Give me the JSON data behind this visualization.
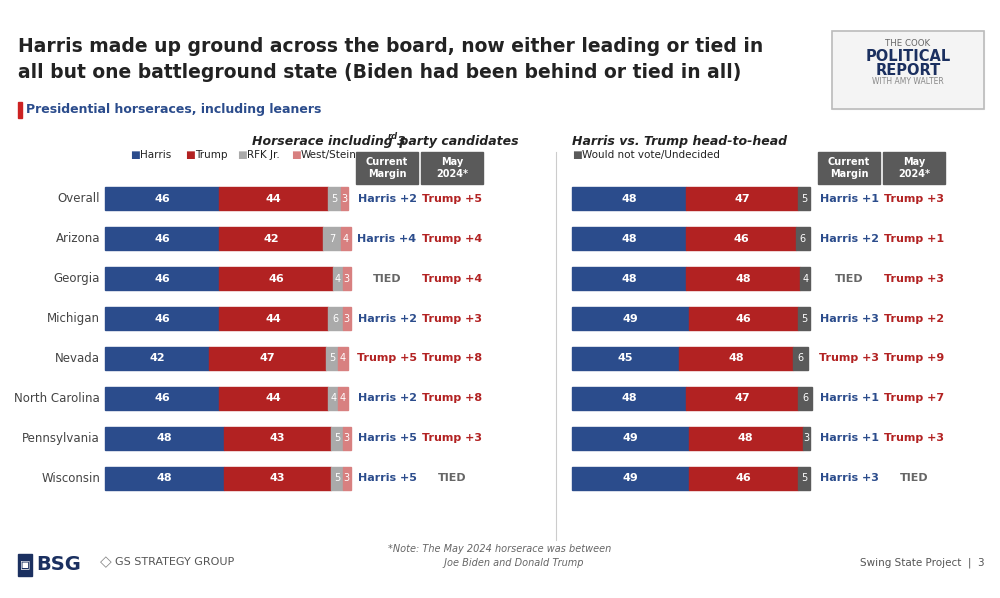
{
  "title": "Harris made up ground across the board, now either leading or tied in\nall but one battleground state (Biden had been behind or tied in all)",
  "subtitle": "Presidential horseraces, including leaners",
  "section1_title": "Horserace including 3ʳᵈ party candidates",
  "section2_title": "Harris vs. Trump head-to-head",
  "states": [
    "Overall",
    "Arizona",
    "Georgia",
    "Michigan",
    "Nevada",
    "North Carolina",
    "Pennsylvania",
    "Wisconsin"
  ],
  "left_bars": [
    {
      "harris": 46,
      "trump": 44,
      "rfk": 5,
      "west": 3
    },
    {
      "harris": 46,
      "trump": 42,
      "rfk": 7,
      "west": 4
    },
    {
      "harris": 46,
      "trump": 46,
      "rfk": 4,
      "west": 3
    },
    {
      "harris": 46,
      "trump": 44,
      "rfk": 6,
      "west": 3
    },
    {
      "harris": 42,
      "trump": 47,
      "rfk": 5,
      "west": 4
    },
    {
      "harris": 46,
      "trump": 44,
      "rfk": 4,
      "west": 4
    },
    {
      "harris": 48,
      "trump": 43,
      "rfk": 5,
      "west": 3
    },
    {
      "harris": 48,
      "trump": 43,
      "rfk": 5,
      "west": 3
    }
  ],
  "right_bars": [
    {
      "harris": 48,
      "trump": 47,
      "undecided": 5
    },
    {
      "harris": 48,
      "trump": 46,
      "undecided": 6
    },
    {
      "harris": 48,
      "trump": 48,
      "undecided": 4
    },
    {
      "harris": 49,
      "trump": 46,
      "undecided": 5
    },
    {
      "harris": 45,
      "trump": 48,
      "undecided": 6
    },
    {
      "harris": 48,
      "trump": 47,
      "undecided": 6
    },
    {
      "harris": 49,
      "trump": 48,
      "undecided": 3
    },
    {
      "harris": 49,
      "trump": 46,
      "undecided": 5
    }
  ],
  "left_margins_current": [
    "Harris +2",
    "Harris +4",
    "TIED",
    "Harris +2",
    "Trump +5",
    "Harris +2",
    "Harris +5",
    "Harris +5"
  ],
  "left_margins_may": [
    "Trump +5",
    "Trump +4",
    "Trump +4",
    "Trump +3",
    "Trump +8",
    "Trump +8",
    "Trump +3",
    "TIED"
  ],
  "right_margins_current": [
    "Harris +1",
    "Harris +2",
    "TIED",
    "Harris +3",
    "Trump +3",
    "Harris +1",
    "Harris +1",
    "Harris +3"
  ],
  "right_margins_may": [
    "Trump +3",
    "Trump +1",
    "Trump +3",
    "Trump +2",
    "Trump +9",
    "Trump +7",
    "Trump +3",
    "TIED"
  ],
  "colors": {
    "harris": "#2B4C8C",
    "trump": "#B22222",
    "rfk": "#AAAAAA",
    "west": "#D88080",
    "undecided": "#5A5A5A",
    "background": "#FFFFFF",
    "top_bar": "#1B3060",
    "red_text": "#B22222",
    "blue_text": "#2B4C8C",
    "gray_text": "#666666",
    "dark_text": "#222222",
    "header_box": "#5A5A5A",
    "cook_border": "#BBBBBB"
  }
}
